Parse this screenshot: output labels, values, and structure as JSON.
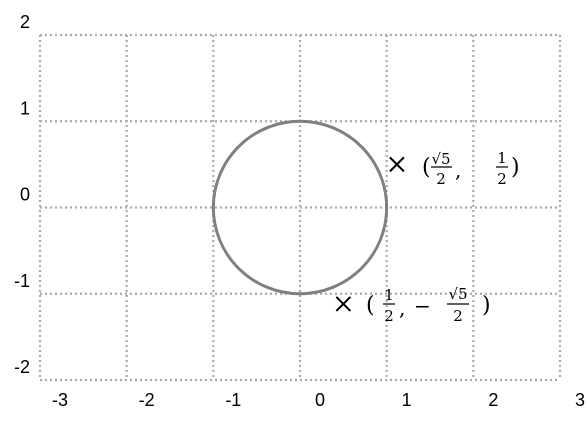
{
  "chart_data": {
    "type": "scatter",
    "xlim": [
      -3,
      3
    ],
    "ylim": [
      -2,
      2
    ],
    "grid": true,
    "x_ticks": [
      "-3",
      "-2",
      "-1",
      "0",
      "1",
      "2",
      "3"
    ],
    "y_ticks": [
      "2",
      "1",
      "0",
      "-1",
      "-2"
    ],
    "circle": {
      "center": [
        0,
        0
      ],
      "radius": 1
    },
    "points": [
      {
        "x": 1.118,
        "y": 0.5,
        "label": "(√5/2, 1/2)"
      },
      {
        "x": 0.5,
        "y": -1.118,
        "label": "(1/2, −√5/2)"
      }
    ]
  }
}
